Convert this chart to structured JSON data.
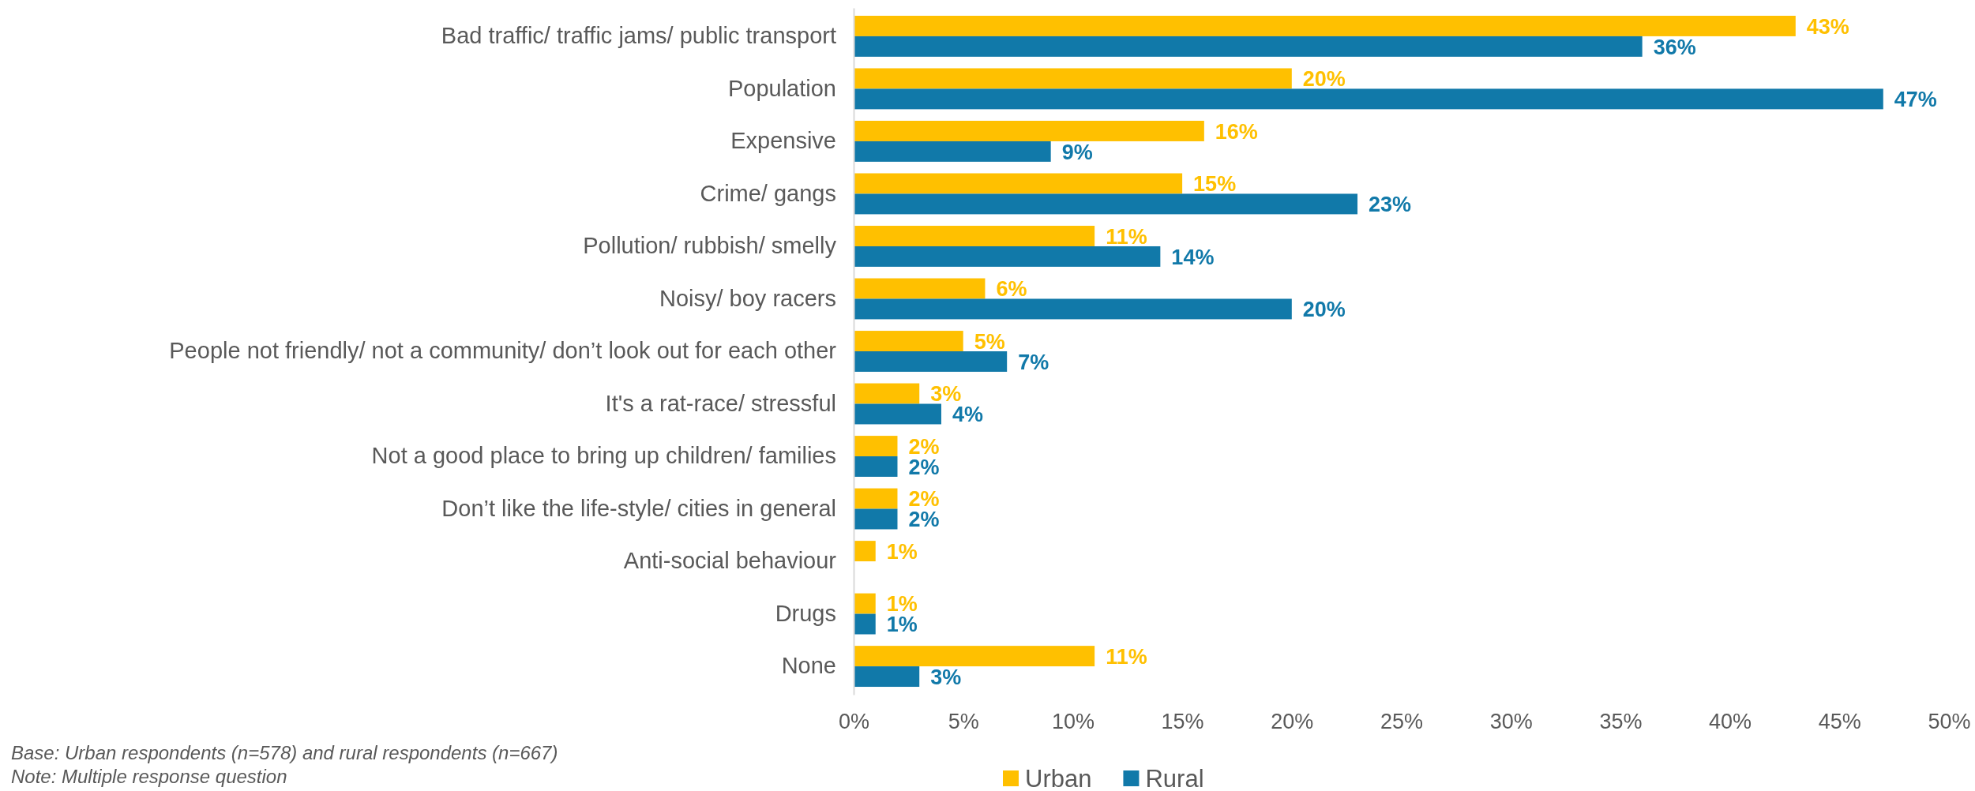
{
  "chart_data": {
    "type": "bar",
    "orientation": "horizontal",
    "categories": [
      "Bad traffic/ traffic jams/ public transport",
      "Population",
      "Expensive",
      "Crime/ gangs",
      "Pollution/ rubbish/ smelly",
      "Noisy/ boy racers",
      "People not friendly/ not a community/ don’t look out for each other",
      "It's a rat-race/ stressful",
      "Not a good place to bring up children/ families",
      "Don’t like the life-style/ cities in general",
      "Anti-social behaviour",
      "Drugs",
      "None"
    ],
    "series": [
      {
        "name": "Urban",
        "color": "#ffc000",
        "values": [
          43,
          20,
          16,
          15,
          11,
          6,
          5,
          3,
          2,
          2,
          1,
          1,
          11
        ],
        "value_labels": [
          "43%",
          "20%",
          "16%",
          "15%",
          "11%",
          "6%",
          "5%",
          "3%",
          "2%",
          "2%",
          "1%",
          "1%",
          "11%"
        ]
      },
      {
        "name": "Rural",
        "color": "#1179a9",
        "values": [
          36,
          47,
          9,
          23,
          14,
          20,
          7,
          4,
          2,
          2,
          null,
          1,
          3
        ],
        "value_labels": [
          "36%",
          "47%",
          "9%",
          "23%",
          "14%",
          "20%",
          "7%",
          "4%",
          "2%",
          "2%",
          null,
          "1%",
          "3%"
        ]
      }
    ],
    "xlim": [
      0,
      50
    ],
    "xticks": [
      {
        "value": 0,
        "label": "0%"
      },
      {
        "value": 5,
        "label": "5%"
      },
      {
        "value": 10,
        "label": "10%"
      },
      {
        "value": 15,
        "label": "15%"
      },
      {
        "value": 20,
        "label": "20%"
      },
      {
        "value": 25,
        "label": "25%"
      },
      {
        "value": 30,
        "label": "30%"
      },
      {
        "value": 35,
        "label": "35%"
      },
      {
        "value": 40,
        "label": "40%"
      },
      {
        "value": 45,
        "label": "45%"
      },
      {
        "value": 50,
        "label": "50%"
      }
    ],
    "grid": false,
    "legend": "bottom",
    "annotations": [
      "Base: Urban respondents (n=578) and rural respondents (n=667)",
      "Note: Multiple response question"
    ]
  }
}
